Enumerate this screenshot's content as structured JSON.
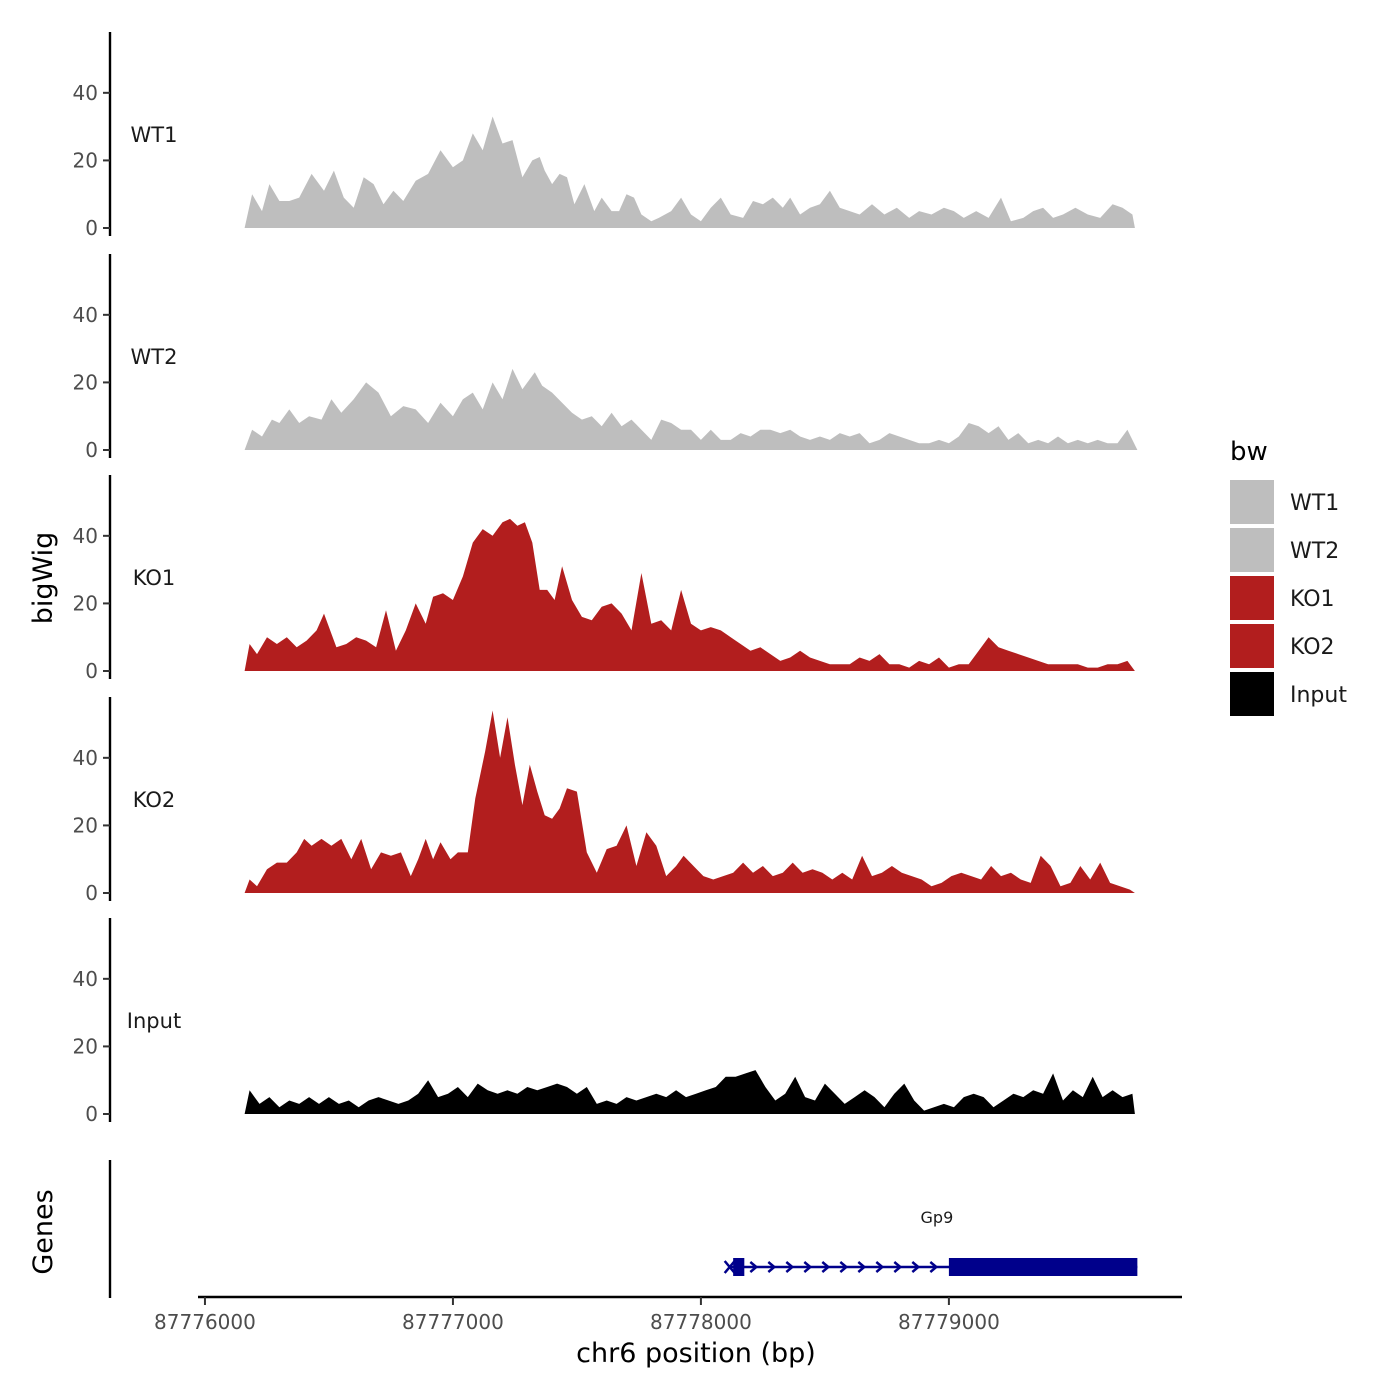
{
  "chart_data": {
    "type": "area",
    "xlabel": "chr6 position (bp)",
    "ylabel": "bigWig",
    "genes_label": "Genes",
    "xlim": [
      87775980,
      87779940
    ],
    "ylim": [
      0,
      58
    ],
    "x_ticks": [
      87776000,
      87777000,
      87778000,
      87779000
    ],
    "x_tick_labels": [
      "87776000",
      "87777000",
      "87778000",
      "87779000"
    ],
    "y_ticks": [
      0,
      20,
      40
    ],
    "y_tick_labels": [
      "0",
      "20",
      "40"
    ],
    "legend": {
      "title": "bw",
      "position": "right",
      "entries": [
        {
          "label": "WT1",
          "color": "#bebebe"
        },
        {
          "label": "WT2",
          "color": "#bebebe"
        },
        {
          "label": "KO1",
          "color": "#b21e1e"
        },
        {
          "label": "KO2",
          "color": "#b21e1e"
        },
        {
          "label": "Input",
          "color": "#000000"
        }
      ]
    },
    "series": [
      {
        "name": "WT1",
        "color": "#bebebe",
        "x": [
          87776160,
          87776190,
          87776230,
          87776260,
          87776300,
          87776340,
          87776380,
          87776430,
          87776480,
          87776520,
          87776560,
          87776600,
          87776640,
          87776680,
          87776720,
          87776760,
          87776800,
          87776850,
          87776900,
          87776950,
          87777000,
          87777040,
          87777080,
          87777120,
          87777160,
          87777200,
          87777240,
          87777280,
          87777320,
          87777350,
          87777370,
          87777400,
          87777430,
          87777460,
          87777490,
          87777530,
          87777570,
          87777600,
          87777640,
          87777670,
          87777700,
          87777730,
          87777760,
          87777800,
          87777830,
          87777880,
          87777920,
          87777960,
          87778000,
          87778040,
          87778080,
          87778120,
          87778170,
          87778210,
          87778250,
          87778290,
          87778330,
          87778360,
          87778400,
          87778440,
          87778480,
          87778520,
          87778560,
          87778600,
          87778640,
          87778690,
          87778740,
          87778790,
          87778840,
          87778880,
          87778930,
          87778980,
          87779020,
          87779060,
          87779110,
          87779160,
          87779210,
          87779250,
          87779300,
          87779340,
          87779380,
          87779420,
          87779460,
          87779510,
          87779560,
          87779610,
          87779660,
          87779700,
          87779740,
          87779750
        ],
        "values": [
          0,
          10,
          5,
          13,
          8,
          8,
          9,
          16,
          11,
          17,
          9,
          6,
          15,
          13,
          7,
          11,
          8,
          14,
          16,
          23,
          18,
          20,
          28,
          23,
          33,
          25,
          26,
          15,
          20,
          21,
          17,
          13,
          16,
          15,
          7,
          13,
          5,
          9,
          5,
          5,
          10,
          9,
          4,
          2,
          3,
          5,
          9,
          4,
          2,
          6,
          9,
          4,
          3,
          8,
          7,
          9,
          6,
          9,
          4,
          6,
          7,
          11,
          6,
          5,
          4,
          7,
          4,
          6,
          3,
          5,
          4,
          6,
          5,
          3,
          5,
          3,
          9,
          2,
          3,
          5,
          6,
          3,
          4,
          6,
          4,
          3,
          7,
          6,
          4,
          0
        ]
      },
      {
        "name": "WT2",
        "color": "#bebebe",
        "x": [
          87776160,
          87776190,
          87776230,
          87776270,
          87776300,
          87776340,
          87776380,
          87776420,
          87776470,
          87776510,
          87776550,
          87776600,
          87776650,
          87776700,
          87776750,
          87776800,
          87776850,
          87776900,
          87776950,
          87777000,
          87777040,
          87777080,
          87777120,
          87777160,
          87777200,
          87777240,
          87777280,
          87777330,
          87777360,
          87777400,
          87777440,
          87777480,
          87777520,
          87777560,
          87777600,
          87777640,
          87777680,
          87777720,
          87777760,
          87777800,
          87777840,
          87777880,
          87777920,
          87777960,
          87778000,
          87778040,
          87778080,
          87778120,
          87778160,
          87778200,
          87778240,
          87778280,
          87778320,
          87778360,
          87778400,
          87778440,
          87778480,
          87778520,
          87778560,
          87778600,
          87778640,
          87778680,
          87778720,
          87778760,
          87778800,
          87778840,
          87778880,
          87778920,
          87778960,
          87779000,
          87779040,
          87779080,
          87779120,
          87779160,
          87779200,
          87779240,
          87779280,
          87779320,
          87779360,
          87779400,
          87779440,
          87779480,
          87779520,
          87779560,
          87779600,
          87779640,
          87779680,
          87779720,
          87779740,
          87779760
        ],
        "values": [
          0,
          6,
          4,
          9,
          8,
          12,
          8,
          10,
          9,
          15,
          11,
          15,
          20,
          17,
          10,
          13,
          12,
          8,
          14,
          10,
          15,
          17,
          12,
          20,
          15,
          24,
          18,
          23,
          19,
          17,
          14,
          11,
          9,
          10,
          7,
          11,
          7,
          9,
          6,
          3,
          9,
          8,
          6,
          6,
          3,
          6,
          3,
          3,
          5,
          4,
          6,
          6,
          5,
          6,
          4,
          3,
          4,
          3,
          5,
          4,
          5,
          2,
          3,
          5,
          4,
          3,
          2,
          2,
          3,
          2,
          4,
          8,
          7,
          5,
          7,
          3,
          5,
          2,
          3,
          2,
          4,
          2,
          3,
          2,
          3,
          2,
          2,
          6,
          3,
          0
        ]
      },
      {
        "name": "KO1",
        "color": "#b21e1e",
        "x": [
          87776160,
          87776180,
          87776210,
          87776250,
          87776290,
          87776330,
          87776370,
          87776410,
          87776450,
          87776480,
          87776530,
          87776570,
          87776610,
          87776650,
          87776690,
          87776730,
          87776770,
          87776810,
          87776850,
          87776890,
          87776920,
          87776960,
          87777000,
          87777040,
          87777080,
          87777120,
          87777160,
          87777200,
          87777230,
          87777260,
          87777290,
          87777320,
          87777350,
          87777380,
          87777410,
          87777440,
          87777480,
          87777520,
          87777560,
          87777600,
          87777640,
          87777680,
          87777720,
          87777760,
          87777800,
          87777840,
          87777880,
          87777920,
          87777960,
          87778000,
          87778040,
          87778080,
          87778120,
          87778160,
          87778200,
          87778240,
          87778280,
          87778320,
          87778360,
          87778400,
          87778440,
          87778480,
          87778520,
          87778560,
          87778600,
          87778640,
          87778680,
          87778720,
          87778760,
          87778800,
          87778840,
          87778880,
          87778920,
          87778960,
          87779000,
          87779040,
          87779080,
          87779120,
          87779160,
          87779200,
          87779240,
          87779280,
          87779320,
          87779360,
          87779400,
          87779440,
          87779480,
          87779520,
          87779560,
          87779600,
          87779640,
          87779680,
          87779720,
          87779740,
          87779750
        ],
        "values": [
          0,
          8,
          5,
          10,
          8,
          10,
          7,
          9,
          12,
          17,
          7,
          8,
          10,
          9,
          7,
          18,
          6,
          12,
          20,
          14,
          22,
          23,
          21,
          28,
          38,
          42,
          40,
          44,
          45,
          43,
          44,
          38,
          24,
          24,
          21,
          31,
          21,
          16,
          15,
          19,
          20,
          17,
          12,
          29,
          14,
          15,
          12,
          24,
          14,
          12,
          13,
          12,
          10,
          8,
          6,
          7,
          5,
          3,
          4,
          6,
          4,
          3,
          2,
          2,
          2,
          4,
          3,
          5,
          2,
          2,
          1,
          3,
          2,
          4,
          1,
          2,
          2,
          6,
          10,
          7,
          6,
          5,
          4,
          3,
          2,
          2,
          2,
          2,
          1,
          1,
          2,
          2,
          3,
          1,
          0
        ]
      },
      {
        "name": "KO2",
        "color": "#b21e1e",
        "x": [
          87776160,
          87776180,
          87776210,
          87776250,
          87776290,
          87776330,
          87776370,
          87776400,
          87776430,
          87776470,
          87776510,
          87776550,
          87776590,
          87776630,
          87776670,
          87776710,
          87776750,
          87776790,
          87776830,
          87776860,
          87776890,
          87776920,
          87776950,
          87776990,
          87777020,
          87777060,
          87777090,
          87777130,
          87777160,
          87777190,
          87777220,
          87777250,
          87777280,
          87777310,
          87777340,
          87777370,
          87777400,
          87777430,
          87777460,
          87777500,
          87777540,
          87777580,
          87777620,
          87777660,
          87777700,
          87777740,
          87777780,
          87777820,
          87777860,
          87777900,
          87777930,
          87777970,
          87778010,
          87778050,
          87778090,
          87778130,
          87778170,
          87778210,
          87778250,
          87778290,
          87778330,
          87778370,
          87778410,
          87778450,
          87778490,
          87778530,
          87778570,
          87778610,
          87778650,
          87778690,
          87778730,
          87778770,
          87778810,
          87778850,
          87778890,
          87778930,
          87778970,
          87779010,
          87779050,
          87779090,
          87779130,
          87779170,
          87779210,
          87779250,
          87779290,
          87779330,
          87779370,
          87779410,
          87779450,
          87779490,
          87779530,
          87779570,
          87779610,
          87779650,
          87779690,
          87779730,
          87779750
        ],
        "values": [
          0,
          4,
          2,
          7,
          9,
          9,
          12,
          16,
          14,
          16,
          14,
          16,
          10,
          16,
          7,
          12,
          11,
          12,
          5,
          10,
          16,
          10,
          15,
          10,
          12,
          12,
          28,
          42,
          54,
          40,
          52,
          38,
          26,
          38,
          30,
          23,
          22,
          25,
          31,
          30,
          12,
          6,
          13,
          14,
          20,
          8,
          18,
          14,
          5,
          8,
          11,
          8,
          5,
          4,
          5,
          6,
          9,
          6,
          8,
          5,
          6,
          9,
          6,
          7,
          6,
          4,
          6,
          4,
          11,
          5,
          6,
          8,
          6,
          5,
          4,
          2,
          3,
          5,
          6,
          5,
          4,
          8,
          5,
          6,
          4,
          3,
          11,
          8,
          2,
          3,
          8,
          4,
          9,
          3,
          2,
          1,
          0
        ]
      },
      {
        "name": "Input",
        "color": "#000000",
        "x": [
          87776160,
          87776180,
          87776220,
          87776260,
          87776300,
          87776340,
          87776380,
          87776420,
          87776460,
          87776500,
          87776540,
          87776580,
          87776620,
          87776660,
          87776700,
          87776740,
          87776780,
          87776820,
          87776860,
          87776900,
          87776940,
          87776980,
          87777020,
          87777060,
          87777100,
          87777140,
          87777180,
          87777220,
          87777260,
          87777300,
          87777340,
          87777380,
          87777420,
          87777460,
          87777500,
          87777540,
          87777580,
          87777620,
          87777660,
          87777700,
          87777740,
          87777780,
          87777820,
          87777860,
          87777900,
          87777940,
          87777980,
          87778020,
          87778060,
          87778100,
          87778140,
          87778180,
          87778220,
          87778260,
          87778300,
          87778340,
          87778380,
          87778420,
          87778460,
          87778500,
          87778540,
          87778580,
          87778620,
          87778660,
          87778700,
          87778740,
          87778780,
          87778820,
          87778860,
          87778900,
          87778940,
          87778980,
          87779020,
          87779060,
          87779100,
          87779140,
          87779180,
          87779220,
          87779260,
          87779300,
          87779340,
          87779380,
          87779420,
          87779460,
          87779500,
          87779540,
          87779580,
          87779620,
          87779660,
          87779700,
          87779740,
          87779750
        ],
        "values": [
          0,
          7,
          3,
          5,
          2,
          4,
          3,
          5,
          3,
          5,
          3,
          4,
          2,
          4,
          5,
          4,
          3,
          4,
          6,
          10,
          5,
          6,
          8,
          5,
          9,
          7,
          6,
          7,
          6,
          8,
          7,
          8,
          9,
          8,
          6,
          8,
          3,
          4,
          3,
          5,
          4,
          5,
          6,
          5,
          7,
          5,
          6,
          7,
          8,
          11,
          11,
          12,
          13,
          8,
          4,
          6,
          11,
          5,
          4,
          9,
          6,
          3,
          5,
          7,
          5,
          2,
          6,
          9,
          4,
          1,
          2,
          3,
          2,
          5,
          6,
          5,
          2,
          4,
          6,
          5,
          7,
          6,
          12,
          4,
          7,
          5,
          11,
          5,
          7,
          5,
          6,
          0
        ]
      }
    ],
    "genes": [
      {
        "name": "Gp9",
        "start": 87778120,
        "end": 87779760,
        "strand": "+",
        "color": "#00008b",
        "exons": [
          [
            87778130,
            87778175
          ],
          [
            87779000,
            87779760
          ]
        ]
      }
    ]
  }
}
